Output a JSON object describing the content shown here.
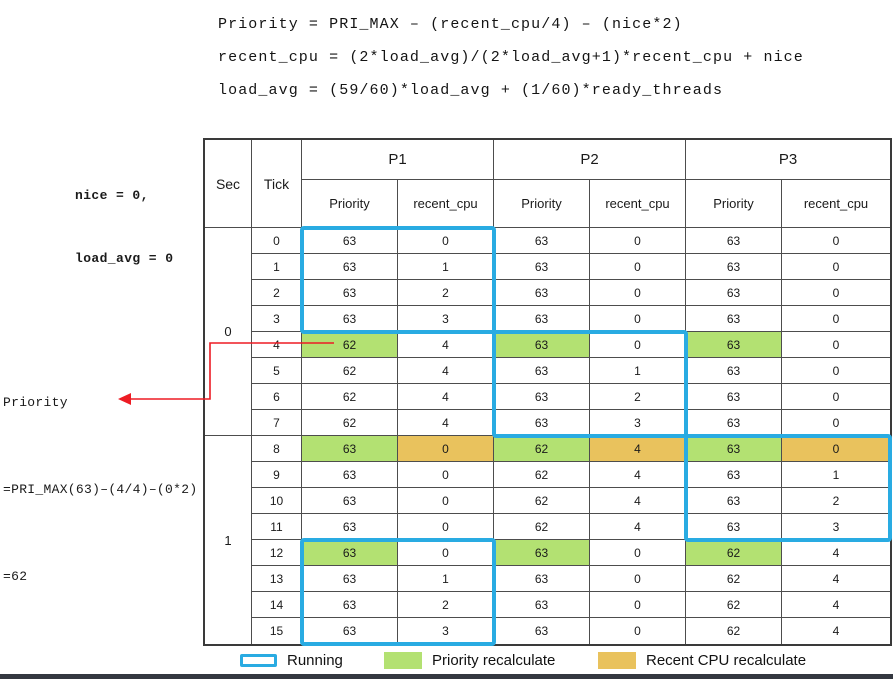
{
  "colors": {
    "running_border": "#29abe2",
    "priority_recalc": "#b3e172",
    "recent_cpu_recalc": "#e9c25d",
    "arrow": "#ed1c24"
  },
  "formulas": [
    "Priority = PRI_MAX – (recent_cpu/4) – (nice*2)",
    "recent_cpu = (2*load_avg)/(2*load_avg+1)*recent_cpu + nice",
    "load_avg = (59/60)*load_avg + (1/60)*ready_threads"
  ],
  "annotations": {
    "nice": "nice = 0,",
    "load_avg": "load_avg = 0",
    "calc": [
      "Priority",
      "=PRI_MAX(63)–(4/4)–(0*2)",
      "=62"
    ]
  },
  "table": {
    "headers": {
      "sec": "Sec",
      "tick": "Tick",
      "groups": [
        "P1",
        "P2",
        "P3"
      ],
      "sub": [
        "Priority",
        "recent_cpu"
      ]
    },
    "sec_labels": [
      "0",
      "1"
    ],
    "rows": [
      {
        "tick": "0",
        "cells": [
          "63",
          "0",
          "63",
          "0",
          "63",
          "0"
        ],
        "hl": [
          "",
          "",
          "",
          "",
          "",
          ""
        ]
      },
      {
        "tick": "1",
        "cells": [
          "63",
          "1",
          "63",
          "0",
          "63",
          "0"
        ],
        "hl": [
          "",
          "",
          "",
          "",
          "",
          ""
        ]
      },
      {
        "tick": "2",
        "cells": [
          "63",
          "2",
          "63",
          "0",
          "63",
          "0"
        ],
        "hl": [
          "",
          "",
          "",
          "",
          "",
          ""
        ]
      },
      {
        "tick": "3",
        "cells": [
          "63",
          "3",
          "63",
          "0",
          "63",
          "0"
        ],
        "hl": [
          "",
          "",
          "",
          "",
          "",
          ""
        ]
      },
      {
        "tick": "4",
        "cells": [
          "62",
          "4",
          "63",
          "0",
          "63",
          "0"
        ],
        "hl": [
          "g",
          "",
          "g",
          "",
          "g",
          ""
        ]
      },
      {
        "tick": "5",
        "cells": [
          "62",
          "4",
          "63",
          "1",
          "63",
          "0"
        ],
        "hl": [
          "",
          "",
          "",
          "",
          "",
          ""
        ]
      },
      {
        "tick": "6",
        "cells": [
          "62",
          "4",
          "63",
          "2",
          "63",
          "0"
        ],
        "hl": [
          "",
          "",
          "",
          "",
          "",
          ""
        ]
      },
      {
        "tick": "7",
        "cells": [
          "62",
          "4",
          "63",
          "3",
          "63",
          "0"
        ],
        "hl": [
          "",
          "",
          "",
          "",
          "",
          ""
        ]
      },
      {
        "tick": "8",
        "cells": [
          "63",
          "0",
          "62",
          "4",
          "63",
          "0"
        ],
        "hl": [
          "g",
          "o",
          "g",
          "o",
          "g",
          "o"
        ]
      },
      {
        "tick": "9",
        "cells": [
          "63",
          "0",
          "62",
          "4",
          "63",
          "1"
        ],
        "hl": [
          "",
          "",
          "",
          "",
          "",
          ""
        ]
      },
      {
        "tick": "10",
        "cells": [
          "63",
          "0",
          "62",
          "4",
          "63",
          "2"
        ],
        "hl": [
          "",
          "",
          "",
          "",
          "",
          ""
        ]
      },
      {
        "tick": "11",
        "cells": [
          "63",
          "0",
          "62",
          "4",
          "63",
          "3"
        ],
        "hl": [
          "",
          "",
          "",
          "",
          "",
          ""
        ]
      },
      {
        "tick": "12",
        "cells": [
          "63",
          "0",
          "63",
          "0",
          "62",
          "4"
        ],
        "hl": [
          "g",
          "",
          "g",
          "",
          "g",
          ""
        ]
      },
      {
        "tick": "13",
        "cells": [
          "63",
          "1",
          "63",
          "0",
          "62",
          "4"
        ],
        "hl": [
          "",
          "",
          "",
          "",
          "",
          ""
        ]
      },
      {
        "tick": "14",
        "cells": [
          "63",
          "2",
          "63",
          "0",
          "62",
          "4"
        ],
        "hl": [
          "",
          "",
          "",
          "",
          "",
          ""
        ]
      },
      {
        "tick": "15",
        "cells": [
          "63",
          "3",
          "63",
          "0",
          "62",
          "4"
        ],
        "hl": [
          "",
          "",
          "",
          "",
          "",
          ""
        ]
      }
    ],
    "running_boxes": [
      {
        "thread": "P1",
        "ticks": [
          0,
          3
        ]
      },
      {
        "thread": "P2",
        "ticks": [
          4,
          7
        ]
      },
      {
        "thread": "P3",
        "ticks": [
          8,
          11
        ]
      },
      {
        "thread": "P1",
        "ticks": [
          12,
          15
        ]
      }
    ]
  },
  "legend": [
    {
      "label": "Running",
      "swatch": "running"
    },
    {
      "label": "Priority recalculate",
      "swatch": "green"
    },
    {
      "label": "Recent CPU recalculate",
      "swatch": "orange"
    }
  ]
}
